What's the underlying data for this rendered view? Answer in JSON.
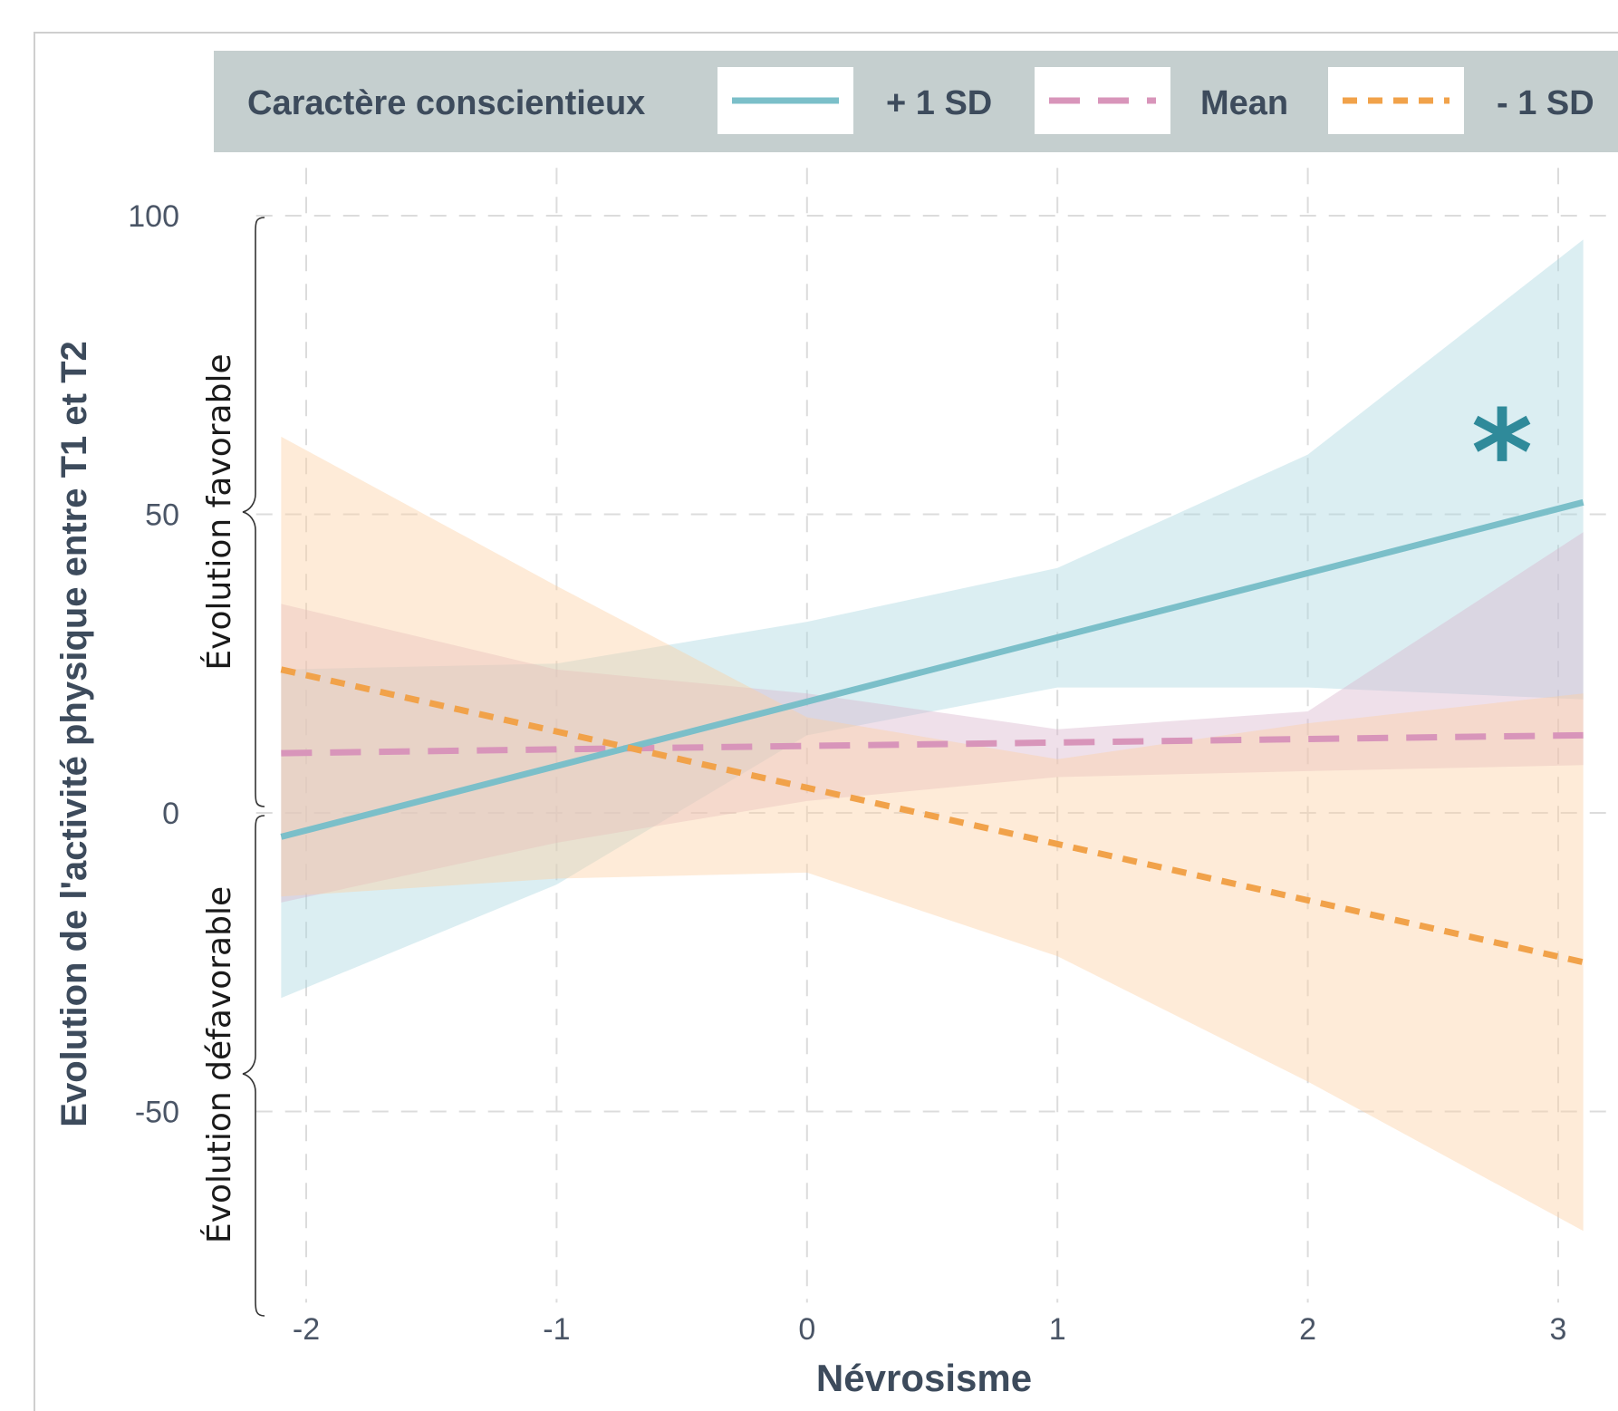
{
  "chart_data": {
    "type": "line",
    "xlabel": "Névrosisme",
    "ylabel": "Evolution de l'activité physique entre T1 et T2",
    "xlim": [
      -2.2,
      3.1
    ],
    "ylim": [
      -82,
      108
    ],
    "xticks": [
      -2,
      -1,
      0,
      1,
      2,
      3
    ],
    "yticks": [
      100,
      50,
      0,
      -50
    ],
    "grid": true,
    "legend": {
      "position": "top",
      "title": "Caractère conscientieux"
    },
    "series": [
      {
        "name": "+ 1 SD",
        "color": "#7bbfc9",
        "dash": "solid",
        "band_color": "#a9d6e0",
        "x": [
          -2.1,
          3.1
        ],
        "y": [
          -4,
          52
        ],
        "band_x": [
          -2.1,
          -1,
          0,
          1,
          2,
          3.1
        ],
        "band_lower": [
          -31,
          -12,
          13,
          21,
          21,
          19
        ],
        "band_upper": [
          24,
          25,
          32,
          41,
          60,
          96
        ]
      },
      {
        "name": "Mean",
        "color": "#d895ba",
        "dash": "long-dash",
        "band_color": "#d8b4ce",
        "x": [
          -2.1,
          3.1
        ],
        "y": [
          10,
          13
        ],
        "band_x": [
          -2.1,
          -1,
          0,
          1,
          2,
          3.1
        ],
        "band_lower": [
          -15,
          -5,
          2,
          6,
          7,
          8
        ],
        "band_upper": [
          35,
          24,
          20,
          14,
          17,
          47
        ]
      },
      {
        "name": "- 1 SD",
        "color": "#f1a24a",
        "dash": "short-dash",
        "band_color": "#fccfa1",
        "x": [
          -2.1,
          3.1
        ],
        "y": [
          24,
          -25
        ],
        "band_x": [
          -2.1,
          -1,
          0,
          1,
          2,
          3.1
        ],
        "band_lower": [
          -14,
          -11,
          -10,
          -24,
          -45,
          -70
        ],
        "band_upper": [
          63,
          38,
          16,
          9,
          15,
          20
        ]
      }
    ],
    "annotations": {
      "favorable": "Évolution favorable",
      "defavorable": "Évolution  défavorable",
      "significance": "*",
      "significance_color": "#2f8a9a"
    }
  }
}
